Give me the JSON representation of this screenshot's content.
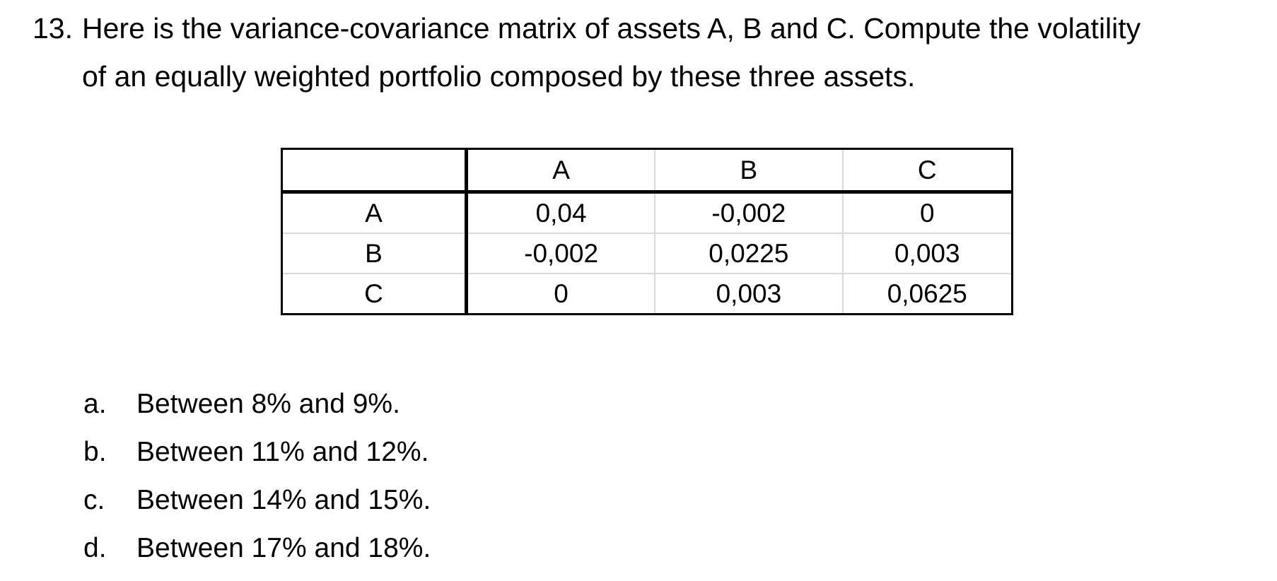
{
  "question": {
    "number": "13.",
    "line1": "Here is the variance-covariance matrix of assets A, B and C. Compute the volatility",
    "line2": "of an equally weighted portfolio composed by these three assets."
  },
  "matrix": {
    "corner": "",
    "columns": [
      "A",
      "B",
      "C"
    ],
    "rows": [
      {
        "label": "A",
        "values": [
          "0,04",
          "-0,002",
          "0"
        ]
      },
      {
        "label": "B",
        "values": [
          "-0,002",
          "0,0225",
          "0,003"
        ]
      },
      {
        "label": "C",
        "values": [
          "0",
          "0,003",
          "0,0625"
        ]
      }
    ]
  },
  "options": [
    {
      "letter": "a.",
      "text": "Between 8% and 9%."
    },
    {
      "letter": "b.",
      "text": "Between 11% and 12%."
    },
    {
      "letter": "c.",
      "text": "Between 14% and 15%."
    },
    {
      "letter": "d.",
      "text": "Between 17% and 18%."
    }
  ]
}
